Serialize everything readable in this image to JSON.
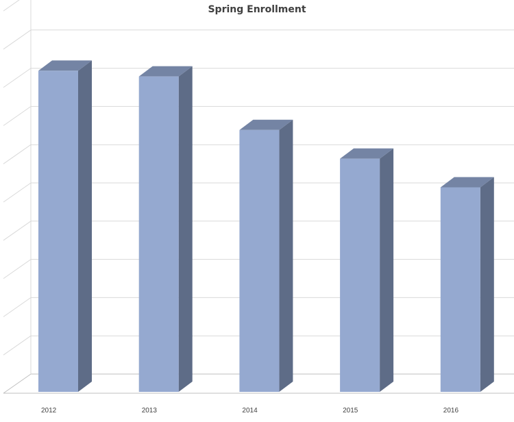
{
  "chart_data": {
    "type": "bar",
    "title": "Spring Enrollment",
    "categories": [
      "2012",
      "2013",
      "2014",
      "2015",
      "2016"
    ],
    "series": [
      {
        "values": [
          8.4,
          8.25,
          6.85,
          6.1,
          5.35
        ]
      }
    ],
    "ylim": [
      0,
      10
    ],
    "grid": true,
    "legend": "none",
    "three_d": true,
    "colors": {
      "front": "#95A9D0",
      "side": "#5E6C87",
      "top": "#7484A4",
      "grid": "#D9D9D9",
      "axis": "#BFBFBF",
      "text": "#404040"
    }
  }
}
